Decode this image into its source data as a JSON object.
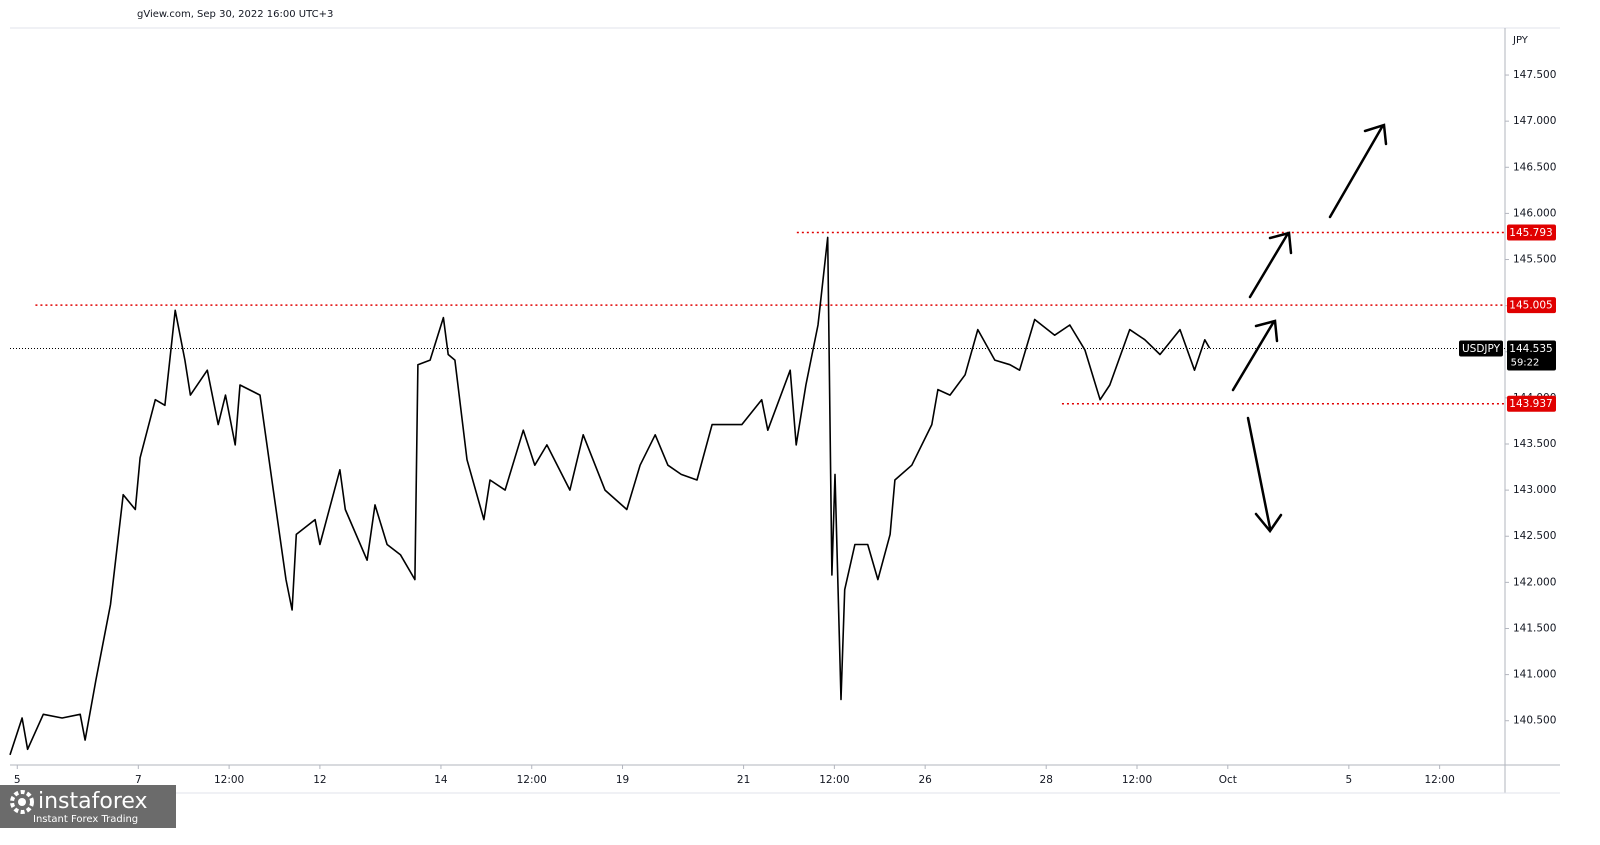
{
  "chart_data": {
    "type": "line",
    "header": "gView.com, Sep 30, 2022 16:00 UTC+3",
    "currency": "JPY",
    "symbol": "USDJPY",
    "last_price": 144.535,
    "countdown": "59:22",
    "logo": {
      "name": "instaforex",
      "tagline": "Instant Forex Trading"
    },
    "xlim": [
      -0.12,
      24.58
    ],
    "ylim": [
      140.02,
      148.01
    ],
    "xticks": [
      {
        "value": 0,
        "label": "5"
      },
      {
        "value": 2,
        "label": "7"
      },
      {
        "value": 3.5,
        "label": "12:00"
      },
      {
        "value": 5,
        "label": "12"
      },
      {
        "value": 7,
        "label": "14"
      },
      {
        "value": 8.5,
        "label": "12:00"
      },
      {
        "value": 10,
        "label": "19"
      },
      {
        "value": 12,
        "label": "21"
      },
      {
        "value": 13.5,
        "label": "12:00"
      },
      {
        "value": 15,
        "label": "26"
      },
      {
        "value": 17,
        "label": "28"
      },
      {
        "value": 18.5,
        "label": "12:00"
      },
      {
        "value": 20,
        "label": "Oct"
      },
      {
        "value": 22,
        "label": "5"
      },
      {
        "value": 23.5,
        "label": "12:00"
      }
    ],
    "yticks": [
      {
        "value": 140.5,
        "label": "140.500"
      },
      {
        "value": 141,
        "label": "141.000"
      },
      {
        "value": 141.5,
        "label": "141.500"
      },
      {
        "value": 142,
        "label": "142.000"
      },
      {
        "value": 142.5,
        "label": "142.500"
      },
      {
        "value": 143,
        "label": "143.000"
      },
      {
        "value": 143.5,
        "label": "143.500"
      },
      {
        "value": 144,
        "label": "144.000"
      },
      {
        "value": 144.5,
        "label": "144.500"
      },
      {
        "value": 145,
        "label": "145.000"
      },
      {
        "value": 145.5,
        "label": "145.500"
      },
      {
        "value": 146,
        "label": "146.000"
      },
      {
        "value": 146.5,
        "label": "146.500"
      },
      {
        "value": 147,
        "label": "147.000"
      },
      {
        "value": 147.5,
        "label": "147.500"
      }
    ],
    "levels": [
      {
        "value": 145.793,
        "x_start": 12.88,
        "color": "#e00000"
      },
      {
        "value": 145.005,
        "x_start": 0.3,
        "color": "#e00000"
      },
      {
        "value": 143.937,
        "x_start": 17.26,
        "color": "#e00000"
      }
    ],
    "series": [
      {
        "name": "USDJPY",
        "color": "#000000",
        "x": [
          -0.12,
          0.08,
          0.17,
          0.43,
          0.74,
          1.04,
          1.12,
          1.3,
          1.54,
          1.75,
          1.95,
          2.03,
          2.28,
          2.44,
          2.61,
          2.77,
          2.86,
          3.14,
          3.32,
          3.44,
          3.6,
          3.68,
          4.01,
          4.23,
          4.44,
          4.54,
          4.61,
          4.92,
          5.0,
          5.33,
          5.42,
          5.78,
          5.91,
          6.11,
          6.33,
          6.57,
          6.62,
          6.82,
          7.04,
          7.12,
          7.23,
          7.43,
          7.71,
          7.81,
          8.06,
          8.36,
          8.55,
          8.75,
          9.13,
          9.35,
          9.71,
          10.07,
          10.29,
          10.54,
          10.75,
          10.97,
          11.23,
          11.48,
          11.97,
          12.3,
          12.4,
          12.77,
          12.87,
          13.03,
          13.23,
          13.39,
          13.46,
          13.51,
          13.61,
          13.67,
          13.84,
          14.05,
          14.22,
          14.42,
          14.5,
          14.78,
          15.11,
          15.21,
          15.41,
          15.66,
          15.87,
          16.15,
          16.4,
          16.56,
          16.81,
          17.14,
          17.39,
          17.64,
          17.89,
          18.05,
          18.38,
          18.63,
          18.88,
          19.21,
          19.45,
          19.62,
          19.7
        ],
        "values": [
          140.13,
          140.53,
          140.19,
          140.57,
          140.53,
          140.57,
          140.29,
          140.94,
          141.76,
          142.95,
          142.79,
          143.35,
          143.98,
          143.92,
          144.95,
          144.41,
          144.03,
          144.3,
          143.71,
          144.03,
          143.49,
          144.14,
          144.03,
          143.0,
          142.03,
          141.7,
          142.52,
          142.68,
          142.41,
          143.22,
          142.79,
          142.24,
          142.84,
          142.41,
          142.3,
          142.03,
          144.36,
          144.41,
          144.87,
          144.47,
          144.41,
          143.33,
          142.68,
          143.11,
          143.0,
          143.65,
          143.27,
          143.49,
          143.0,
          143.6,
          143.0,
          142.79,
          143.27,
          143.6,
          143.27,
          143.17,
          143.11,
          143.71,
          143.71,
          143.98,
          143.65,
          144.3,
          143.49,
          144.14,
          144.79,
          145.74,
          142.08,
          143.17,
          140.73,
          141.92,
          142.41,
          142.41,
          142.03,
          142.52,
          143.11,
          143.27,
          143.71,
          144.09,
          144.03,
          144.25,
          144.74,
          144.41,
          144.36,
          144.3,
          144.85,
          144.68,
          144.79,
          144.52,
          143.98,
          144.14,
          144.74,
          144.63,
          144.47,
          144.74,
          144.3,
          144.63,
          144.54
        ]
      }
    ]
  }
}
